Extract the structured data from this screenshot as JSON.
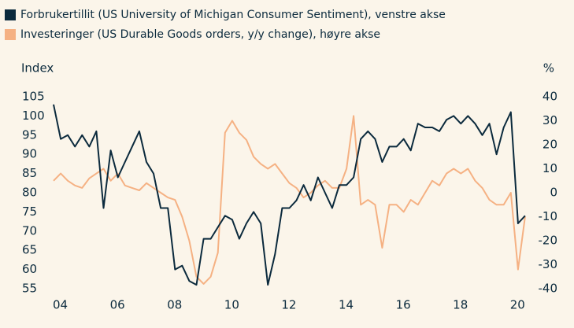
{
  "chart_data": {
    "type": "line",
    "y_label": "Index",
    "y2_label": "%",
    "x": [
      2004,
      2004.25,
      2004.5,
      2004.75,
      2005,
      2005.25,
      2005.5,
      2005.75,
      2006,
      2006.25,
      2006.5,
      2006.75,
      2007,
      2007.25,
      2007.5,
      2007.75,
      2008,
      2008.25,
      2008.5,
      2008.75,
      2009,
      2009.25,
      2009.5,
      2009.75,
      2010,
      2010.25,
      2010.5,
      2010.75,
      2011,
      2011.25,
      2011.5,
      2011.75,
      2012,
      2012.25,
      2012.5,
      2012.75,
      2013,
      2013.25,
      2013.5,
      2013.75,
      2014,
      2014.25,
      2014.5,
      2014.75,
      2015,
      2015.25,
      2015.5,
      2015.75,
      2016,
      2016.25,
      2016.5,
      2016.75,
      2017,
      2017.25,
      2017.5,
      2017.75,
      2018,
      2018.25,
      2018.5,
      2018.75,
      2019,
      2019.25,
      2019.5,
      2019.75,
      2020,
      2020.25,
      2020.5
    ],
    "series": [
      {
        "name": "Forbrukertillit (US University of Michigan Consumer Sentiment), venstre akse",
        "color": "#0b2a3d",
        "values": [
          103,
          94,
          95,
          92,
          95,
          92,
          96,
          76,
          91,
          84,
          88,
          92,
          96,
          88,
          85,
          76,
          76,
          60,
          61,
          57,
          56,
          68,
          68,
          71,
          74,
          73,
          68,
          72,
          75,
          72,
          56,
          64,
          76,
          76,
          78,
          82,
          78,
          84,
          80,
          76,
          82,
          82,
          84,
          94,
          96,
          94,
          88,
          92,
          92,
          94,
          91,
          98,
          97,
          97,
          96,
          99,
          100,
          98,
          100,
          98,
          95,
          98,
          90,
          97,
          101,
          72,
          74
        ]
      },
      {
        "name": "Investeringer (US Durable Goods orders, y/y change), høyre akse",
        "color": "#f5b183",
        "axis": "y2",
        "values": [
          5,
          8,
          5,
          3,
          2,
          6,
          8,
          10,
          5,
          8,
          3,
          2,
          1,
          4,
          2,
          0,
          -2,
          -3,
          -10,
          -20,
          -35,
          -38,
          -35,
          -25,
          25,
          30,
          25,
          22,
          15,
          12,
          10,
          12,
          8,
          4,
          2,
          -2,
          0,
          3,
          5,
          2,
          2,
          10,
          32,
          -5,
          -3,
          -5,
          -23,
          -5,
          -5,
          -8,
          -3,
          -5,
          0,
          5,
          3,
          8,
          10,
          8,
          10,
          5,
          2,
          -3,
          -5,
          -5,
          0,
          -32,
          -10
        ]
      }
    ],
    "xlim": [
      2004,
      2020.75
    ],
    "xticks": [
      {
        "value": 2004,
        "label": "04"
      },
      {
        "value": 2006,
        "label": "06"
      },
      {
        "value": 2008,
        "label": "08"
      },
      {
        "value": 2010,
        "label": "10"
      },
      {
        "value": 2012,
        "label": "12"
      },
      {
        "value": 2014,
        "label": "14"
      },
      {
        "value": 2016,
        "label": "16"
      },
      {
        "value": 2018,
        "label": "18"
      },
      {
        "value": 2020,
        "label": "20"
      }
    ],
    "ylim": [
      55,
      105
    ],
    "yticks": [
      55,
      60,
      65,
      70,
      75,
      80,
      85,
      90,
      95,
      100,
      105
    ],
    "y2lim": [
      -40,
      40
    ],
    "y2ticks": [
      -40,
      -30,
      -20,
      -10,
      0,
      10,
      20,
      30,
      40
    ]
  }
}
